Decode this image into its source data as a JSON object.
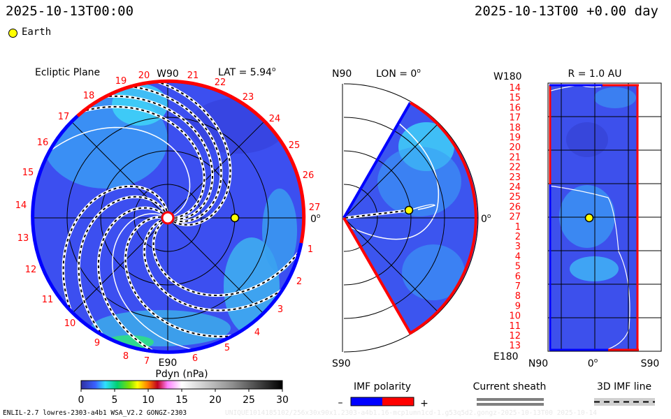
{
  "header": {
    "time_left": "2025-10-13T00:00",
    "time_right": "2025-10-13T00 +0.00 day"
  },
  "legend": {
    "earth_label": "Earth",
    "earth_color": "#ffff00"
  },
  "ecliptic_panel": {
    "title": "Ecliptic Plane",
    "lat_label": "LAT = 5.94",
    "degree_sign": "o",
    "top_label": "W90",
    "bottom_label": "E90",
    "right_label": "0",
    "carrington_labels": [
      "1",
      "2",
      "3",
      "4",
      "5",
      "6",
      "7",
      "8",
      "9",
      "10",
      "11",
      "12",
      "13",
      "14",
      "15",
      "16",
      "17",
      "18",
      "19",
      "20",
      "21",
      "22",
      "23",
      "24",
      "25",
      "26",
      "27"
    ]
  },
  "meridional_panel": {
    "lon_label": "LON = 0",
    "top_label": "N90",
    "bottom_label": "S90",
    "right_label": "0"
  },
  "sphere_panel": {
    "title": "R = 1.0 AU",
    "top_left_label": "W180",
    "bottom_left_label": "E180",
    "bottom_labels": [
      "N90",
      "0",
      "S90"
    ],
    "row_labels": [
      "14",
      "15",
      "16",
      "17",
      "18",
      "19",
      "20",
      "21",
      "22",
      "23",
      "24",
      "25",
      "26",
      "27",
      "1",
      "2",
      "3",
      "4",
      "5",
      "6",
      "7",
      "8",
      "9",
      "10",
      "11",
      "12",
      "13"
    ]
  },
  "colorbar": {
    "title": "Pdyn (nPa)",
    "ticks": [
      "0",
      "5",
      "10",
      "15",
      "20",
      "25",
      "30"
    ],
    "range": [
      0,
      30
    ]
  },
  "imf_polarity": {
    "title": "IMF polarity",
    "minus": "–",
    "plus": "+",
    "negative_color": "#0000ff",
    "positive_color": "#ff0000"
  },
  "current_sheath": {
    "title": "Current sheath"
  },
  "imf_line": {
    "title": "3D IMF line"
  },
  "footer": {
    "model_info": "ENLIL-2.7 lowres-2303-a4b1 WSA_V2.2 GONGZ-2303",
    "run_id": "UNIQUE1014185102/256x30x90x1.2303-a4b1.16-mcp1umn1cd-1.g53q5d2.gongz-2025-10-13T00   2025-10-14"
  }
}
